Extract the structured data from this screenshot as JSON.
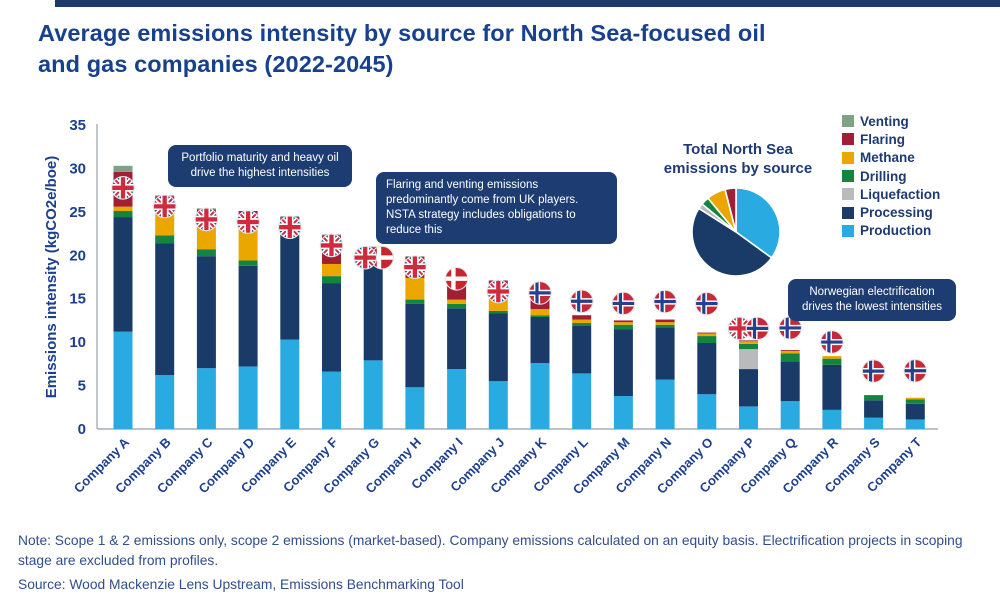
{
  "title_lines": [
    "Average emissions intensity by source for North Sea-focused oil",
    "and gas companies (2022-2045)"
  ],
  "colors": {
    "venting": "#7FA284",
    "flaring": "#A01F35",
    "methane": "#EBA700",
    "drilling": "#148540",
    "liquefaction": "#B8BABC",
    "processing": "#1A3A68",
    "production": "#29ABE2",
    "accent_navy": "#1D3C72",
    "title_blue": "#17418C",
    "axis_text_blue": "#1C3F8F"
  },
  "legend": {
    "items": [
      {
        "label": "Venting",
        "color": "#7FA284"
      },
      {
        "label": "Flaring",
        "color": "#A01F35"
      },
      {
        "label": "Methane",
        "color": "#EBA700"
      },
      {
        "label": "Drilling",
        "color": "#148540"
      },
      {
        "label": "Liquefaction",
        "color": "#B8BABC"
      },
      {
        "label": "Processing",
        "color": "#1A3A68"
      },
      {
        "label": "Production",
        "color": "#29ABE2"
      }
    ]
  },
  "pie": {
    "title_lines": [
      "Total North Sea",
      "emissions by source"
    ]
  },
  "annotations": [
    {
      "text": "Portfolio maturity and heavy oil drive the highest intensities"
    },
    {
      "text": "Flaring and venting emissions predominantly come from UK players. NSTA strategy includes obligations to reduce this"
    },
    {
      "text": "Norwegian electrification drives the lowest intensities"
    }
  ],
  "notes": {
    "note": "Note: Scope 1 & 2 emissions only, scope 2 emissions (market-based). Company emissions calculated on an equity basis. Electrification projects in scoping stage are excluded from profiles.",
    "source": "Source: Wood Mackenzie Lens Upstream, Emissions Benchmarking Tool"
  },
  "chart_data": [
    {
      "type": "bar",
      "stacked": true,
      "title": "Average emissions intensity by source for North Sea-focused oil and gas companies (2022-2045)",
      "xlabel": "",
      "ylabel": "Emissions intensity (kgCO2e/boe)",
      "ylim": [
        0,
        35
      ],
      "ytick_step": 5,
      "grid": false,
      "categories": [
        "Company A",
        "Company B",
        "Company C",
        "Company D",
        "Company E",
        "Company F",
        "Company G",
        "Company H",
        "Company I",
        "Company J",
        "Company K",
        "Company L",
        "Company M",
        "Company N",
        "Company O",
        "Company P",
        "Company Q",
        "Company R",
        "Company S",
        "Company T"
      ],
      "series": [
        {
          "name": "Production",
          "color": "#29ABE2",
          "values": [
            11.2,
            6.2,
            7.0,
            7.2,
            10.3,
            6.6,
            7.9,
            4.8,
            6.9,
            5.5,
            7.6,
            6.4,
            3.8,
            5.7,
            4.0,
            2.6,
            3.2,
            2.2,
            1.3,
            1.1
          ]
        },
        {
          "name": "Processing",
          "color": "#1A3A68",
          "values": [
            13.2,
            15.2,
            12.9,
            11.6,
            12.0,
            10.2,
            11.1,
            9.6,
            7.0,
            7.8,
            5.3,
            5.5,
            7.7,
            6.0,
            5.9,
            4.3,
            4.6,
            5.2,
            2.0,
            1.8
          ]
        },
        {
          "name": "Liquefaction",
          "color": "#B8BABC",
          "values": [
            0,
            0,
            0,
            0,
            0,
            0,
            0,
            0,
            0,
            0,
            0,
            0,
            0,
            0,
            0,
            2.3,
            0,
            0,
            0,
            0
          ]
        },
        {
          "name": "Drilling",
          "color": "#148540",
          "values": [
            0.7,
            0.9,
            0.8,
            0.6,
            0.2,
            0.8,
            0.4,
            0.5,
            0.5,
            0.3,
            0.2,
            0.3,
            0.5,
            0.3,
            0.8,
            0.6,
            0.9,
            0.7,
            0.6,
            0.5
          ]
        },
        {
          "name": "Methane",
          "color": "#EBA700",
          "values": [
            0.5,
            3.5,
            3.8,
            4.8,
            1.2,
            1.4,
            0.3,
            2.5,
            0.5,
            2.5,
            0.7,
            0.4,
            0.3,
            0.3,
            0.3,
            0.3,
            0.3,
            0.3,
            0,
            0.2
          ]
        },
        {
          "name": "Flaring",
          "color": "#A01F35",
          "values": [
            4.0,
            1.0,
            0.8,
            0.9,
            0.7,
            3.3,
            1.2,
            2.4,
            2.3,
            1.0,
            1.2,
            0.5,
            0.2,
            0.3,
            0.1,
            0.1,
            0.1,
            0,
            0,
            0
          ]
        },
        {
          "name": "Venting",
          "color": "#7FA284",
          "values": [
            0.7,
            0.1,
            0.1,
            0,
            0.1,
            0.1,
            0.1,
            0.1,
            0.1,
            0,
            0.1,
            0,
            0,
            0,
            0,
            0,
            0,
            0,
            0,
            0
          ]
        }
      ],
      "company_flags": [
        [
          [
            "uk",
            0
          ]
        ],
        [
          [
            "uk",
            0
          ]
        ],
        [
          [
            "uk",
            0
          ]
        ],
        [
          [
            "uk",
            0
          ]
        ],
        [
          [
            "uk",
            0
          ]
        ],
        [
          [
            "uk",
            0
          ]
        ],
        [
          [
            "dk",
            9
          ],
          [
            "uk",
            -8
          ]
        ],
        [
          [
            "uk",
            0
          ]
        ],
        [
          [
            "dk",
            0
          ]
        ],
        [
          [
            "uk",
            0
          ]
        ],
        [
          [
            "no",
            0
          ]
        ],
        [
          [
            "no",
            0
          ]
        ],
        [
          [
            "no",
            0
          ]
        ],
        [
          [
            "no",
            0
          ]
        ],
        [
          [
            "no",
            0
          ]
        ],
        [
          [
            "uk",
            -9
          ],
          [
            "no",
            9
          ]
        ],
        [
          [
            "no",
            0
          ]
        ],
        [
          [
            "no",
            0
          ]
        ],
        [
          [
            "no",
            0
          ]
        ],
        [
          [
            "no",
            0
          ]
        ]
      ],
      "flag_dy": [
        22,
        11,
        11,
        11,
        11,
        11,
        11,
        11,
        0,
        11,
        -5,
        -14,
        -17,
        -18,
        -29,
        -12,
        -22,
        -14,
        -24,
        -27
      ]
    },
    {
      "type": "pie",
      "title": "Total North Sea emissions by source",
      "legend_position": "right",
      "slices": [
        {
          "label": "Production",
          "value": 35,
          "color": "#29ABE2"
        },
        {
          "label": "Processing",
          "value": 49,
          "color": "#1A3A68"
        },
        {
          "label": "Liquefaction",
          "value": 2,
          "color": "#B8BABC"
        },
        {
          "label": "Drilling",
          "value": 3,
          "color": "#148540"
        },
        {
          "label": "Methane",
          "value": 7,
          "color": "#EBA700"
        },
        {
          "label": "Flaring",
          "value": 4,
          "color": "#A01F35"
        }
      ]
    }
  ]
}
